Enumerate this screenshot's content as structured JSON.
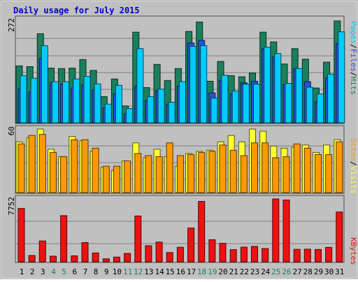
{
  "chart_data": [
    {
      "type": "bar",
      "title": "Daily usage for July 2015",
      "panel": "top",
      "categories": [
        "1",
        "2",
        "3",
        "4",
        "5",
        "6",
        "7",
        "8",
        "9",
        "10",
        "11",
        "12",
        "13",
        "14",
        "15",
        "16",
        "17",
        "18",
        "19",
        "20",
        "21",
        "22",
        "23",
        "24",
        "25",
        "26",
        "27",
        "28",
        "29",
        "30",
        "31"
      ],
      "ytick": "272",
      "ylim": [
        0,
        272
      ],
      "grid": true,
      "legend_words": [
        "Pages",
        "Files",
        "Hits"
      ],
      "legend_seps": [
        "/",
        "/"
      ],
      "series": [
        {
          "name": "Hits",
          "color": "#1b7f5c",
          "values": [
            152,
            150,
            238,
            146,
            145,
            146,
            169,
            140,
            70,
            117,
            45,
            242,
            94,
            156,
            113,
            145,
            244,
            269,
            111,
            164,
            126,
            123,
            133,
            242,
            216,
            157,
            198,
            170,
            93,
            162,
            272
          ]
        },
        {
          "name": "Files",
          "color": "#2a4fd8",
          "values": [
            91,
            82,
            172,
            107,
            103,
            93,
            101,
            88,
            40,
            78,
            24,
            98,
            60,
            86,
            50,
            98,
            213,
            220,
            80,
            113,
            77,
            107,
            111,
            198,
            176,
            102,
            145,
            110,
            56,
            120,
            212
          ]
        },
        {
          "name": "Pages",
          "color": "#00ccff",
          "values": [
            126,
            119,
            206,
            110,
            110,
            117,
            124,
            104,
            50,
            100,
            38,
            198,
            70,
            90,
            55,
            110,
            204,
            206,
            66,
            127,
            85,
            103,
            103,
            202,
            185,
            105,
            145,
            95,
            77,
            130,
            243
          ]
        }
      ]
    },
    {
      "type": "bar",
      "panel": "middle",
      "categories": [
        "1",
        "2",
        "3",
        "4",
        "5",
        "6",
        "7",
        "8",
        "9",
        "10",
        "11",
        "12",
        "13",
        "14",
        "15",
        "16",
        "17",
        "18",
        "19",
        "20",
        "21",
        "22",
        "23",
        "24",
        "25",
        "26",
        "27",
        "28",
        "29",
        "30",
        "31"
      ],
      "ytick": "60",
      "ylim": [
        0,
        60
      ],
      "grid": true,
      "legend_words": [
        "Sites",
        "Visits"
      ],
      "legend_seps": [
        "/"
      ],
      "series": [
        {
          "name": "Visits",
          "color": "#ffff33",
          "values": [
            48,
            52,
            60,
            41,
            34,
            53,
            49,
            39,
            24,
            21,
            30,
            47,
            33,
            41,
            34,
            25,
            37,
            39,
            40,
            48,
            54,
            48,
            60,
            58,
            44,
            42,
            43,
            45,
            38,
            45,
            50
          ]
        },
        {
          "name": "Sites",
          "color": "#ff9900",
          "values": [
            46,
            54,
            55,
            38,
            34,
            50,
            50,
            42,
            25,
            25,
            30,
            37,
            35,
            34,
            47,
            35,
            36,
            38,
            39,
            45,
            40,
            35,
            47,
            47,
            33,
            34,
            46,
            42,
            36,
            36,
            48
          ]
        }
      ]
    },
    {
      "type": "bar",
      "panel": "bottom",
      "categories": [
        "1",
        "2",
        "3",
        "4",
        "5",
        "6",
        "7",
        "8",
        "9",
        "10",
        "11",
        "12",
        "13",
        "14",
        "15",
        "16",
        "17",
        "18",
        "19",
        "20",
        "21",
        "22",
        "23",
        "24",
        "25",
        "26",
        "27",
        "28",
        "29",
        "30",
        "31"
      ],
      "ytick": "7752",
      "ylim": [
        0,
        7752
      ],
      "grid": true,
      "legend_words": [
        "KBytes"
      ],
      "legend_seps": [],
      "series": [
        {
          "name": "KBytes",
          "color": "#ee1111",
          "values": [
            6580,
            771,
            2565,
            691,
            5690,
            736,
            2372,
            1082,
            360,
            573,
            1027,
            5650,
            1977,
            2433,
            1136,
            1791,
            4156,
            7452,
            2721,
            2274,
            1502,
            1805,
            1891,
            1628,
            7752,
            7626,
            1535,
            1554,
            1516,
            1778,
            6140
          ]
        }
      ]
    }
  ],
  "x_highlight_days": [
    "4",
    "5",
    "11",
    "12",
    "18",
    "19",
    "25",
    "26"
  ],
  "colors": {
    "weekday_label": "#000000",
    "weekend_label": "#1b7f5c",
    "frame": "#808080",
    "panel_bg": "#c0c0c0",
    "grid": "#808080",
    "title": "#0000cc"
  }
}
